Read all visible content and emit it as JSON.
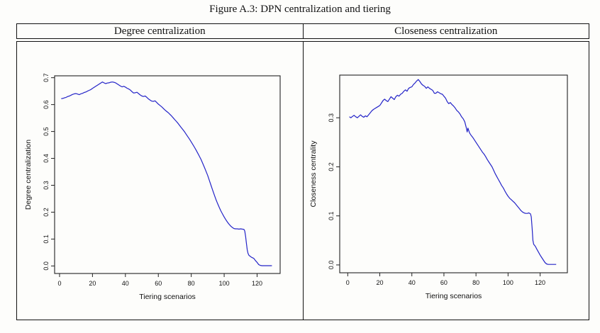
{
  "figure": {
    "title": "Figure A.3: DPN centralization and tiering"
  },
  "panels": {
    "left_header": "Degree centralization",
    "right_header": "Closeness centralization"
  },
  "colors": {
    "line": "#2424c8",
    "axis": "#222222",
    "text": "#111111"
  },
  "chart_data": [
    {
      "type": "line",
      "title": "Degree centralization",
      "xlabel": "Tiering scenarios",
      "ylabel": "Degree centralization",
      "legend": "none",
      "grid": false,
      "xlim": [
        -3,
        134
      ],
      "ylim": [
        -0.028,
        0.707
      ],
      "x_ticks": [
        0,
        20,
        40,
        60,
        80,
        100,
        120
      ],
      "x_tick_labels": [
        "0",
        "20",
        "40",
        "60",
        "80",
        "100",
        "120"
      ],
      "y_ticks": [
        0.0,
        0.1,
        0.2,
        0.3,
        0.4,
        0.5,
        0.6,
        0.7
      ],
      "y_tick_labels": [
        "0.0",
        "0.1",
        "0.2",
        "0.3",
        "0.4",
        "0.5",
        "0.6",
        "0.7"
      ],
      "line_color": "#2424c8",
      "series": [
        {
          "name": "Degree centralization",
          "x": [
            1,
            2,
            3,
            4,
            5,
            6,
            7,
            8,
            9,
            10,
            11,
            12,
            13,
            14,
            15,
            16,
            17,
            18,
            19,
            20,
            21,
            22,
            23,
            24,
            25,
            26,
            27,
            28,
            29,
            30,
            31,
            32,
            33,
            34,
            35,
            36,
            37,
            38,
            39,
            40,
            41,
            42,
            43,
            44,
            45,
            46,
            47,
            48,
            49,
            50,
            51,
            52,
            53,
            54,
            55,
            56,
            57,
            58,
            59,
            60,
            61,
            62,
            63,
            64,
            65,
            66,
            67,
            68,
            69,
            70,
            71,
            72,
            73,
            74,
            75,
            76,
            77,
            78,
            79,
            80,
            81,
            82,
            83,
            84,
            85,
            86,
            87,
            88,
            89,
            90,
            91,
            92,
            93,
            94,
            95,
            96,
            97,
            98,
            99,
            100,
            101,
            102,
            103,
            104,
            105,
            106,
            107,
            108,
            109,
            110,
            111,
            112,
            112.5,
            113,
            113.5,
            114,
            114.5,
            115,
            116,
            117,
            118,
            118.5,
            119,
            120,
            120.5,
            121,
            122,
            123,
            124,
            125,
            126,
            127,
            128,
            129
          ],
          "y": [
            0.622,
            0.623,
            0.625,
            0.627,
            0.63,
            0.632,
            0.635,
            0.638,
            0.64,
            0.641,
            0.639,
            0.637,
            0.64,
            0.642,
            0.645,
            0.647,
            0.65,
            0.653,
            0.656,
            0.66,
            0.664,
            0.668,
            0.672,
            0.676,
            0.68,
            0.684,
            0.681,
            0.678,
            0.68,
            0.681,
            0.683,
            0.684,
            0.683,
            0.681,
            0.677,
            0.673,
            0.669,
            0.666,
            0.668,
            0.665,
            0.661,
            0.658,
            0.654,
            0.648,
            0.643,
            0.644,
            0.646,
            0.641,
            0.636,
            0.632,
            0.63,
            0.632,
            0.627,
            0.621,
            0.617,
            0.613,
            0.612,
            0.614,
            0.608,
            0.602,
            0.597,
            0.592,
            0.586,
            0.58,
            0.575,
            0.57,
            0.564,
            0.558,
            0.551,
            0.544,
            0.537,
            0.53,
            0.522,
            0.514,
            0.506,
            0.498,
            0.489,
            0.48,
            0.471,
            0.461,
            0.451,
            0.441,
            0.43,
            0.419,
            0.407,
            0.395,
            0.381,
            0.367,
            0.352,
            0.336,
            0.318,
            0.3,
            0.282,
            0.264,
            0.247,
            0.232,
            0.218,
            0.205,
            0.193,
            0.182,
            0.172,
            0.163,
            0.155,
            0.148,
            0.143,
            0.139,
            0.138,
            0.138,
            0.137,
            0.138,
            0.137,
            0.136,
            0.13,
            0.11,
            0.085,
            0.06,
            0.047,
            0.04,
            0.035,
            0.031,
            0.028,
            0.024,
            0.02,
            0.013,
            0.009,
            0.005,
            0.002,
            0.001,
            0.001,
            0.001,
            0.001,
            0.001,
            0.001,
            0.001
          ]
        }
      ]
    },
    {
      "type": "line",
      "title": "Closeness centralization",
      "xlabel": "Tiering scenarios",
      "ylabel": "Closeness centrality",
      "legend": "none",
      "grid": false,
      "xlim": [
        -5,
        137
      ],
      "ylim": [
        -0.016,
        0.387
      ],
      "x_ticks": [
        0,
        20,
        40,
        60,
        80,
        100,
        120
      ],
      "x_tick_labels": [
        "0",
        "20",
        "40",
        "60",
        "80",
        "100",
        "120"
      ],
      "y_ticks": [
        0.0,
        0.1,
        0.2,
        0.3
      ],
      "y_tick_labels": [
        "0.0",
        "0.1",
        "0.2",
        "0.3"
      ],
      "line_color": "#2424c8",
      "series": [
        {
          "name": "Closeness centrality",
          "x": [
            1,
            2,
            3,
            4,
            5,
            6,
            7,
            8,
            9,
            10,
            11,
            12,
            13,
            14,
            15,
            16,
            17,
            18,
            19,
            20,
            21,
            22,
            23,
            24,
            25,
            26,
            27,
            28,
            29,
            30,
            31,
            32,
            33,
            34,
            35,
            36,
            37,
            38,
            39,
            40,
            41,
            42,
            43,
            44,
            45,
            46,
            47,
            48,
            49,
            50,
            51,
            52,
            53,
            54,
            55,
            56,
            57,
            58,
            59,
            60,
            61,
            62,
            63,
            64,
            65,
            66,
            67,
            68,
            69,
            70,
            71,
            72,
            73,
            74,
            74.5,
            75,
            76,
            77,
            78,
            79,
            80,
            81,
            82,
            83,
            84,
            85,
            86,
            87,
            88,
            89,
            90,
            91,
            92,
            93,
            94,
            95,
            96,
            97,
            98,
            99,
            100,
            101,
            102,
            103,
            104,
            105,
            106,
            107,
            108,
            109,
            110,
            111,
            112,
            113,
            114,
            114.5,
            115,
            115.5,
            116,
            117,
            118,
            119,
            120,
            121,
            122,
            123,
            124,
            125,
            126,
            127,
            128,
            129,
            130
          ],
          "y": [
            0.302,
            0.3,
            0.303,
            0.305,
            0.302,
            0.3,
            0.303,
            0.306,
            0.303,
            0.301,
            0.304,
            0.302,
            0.306,
            0.31,
            0.314,
            0.317,
            0.319,
            0.321,
            0.323,
            0.325,
            0.33,
            0.335,
            0.338,
            0.335,
            0.333,
            0.338,
            0.343,
            0.34,
            0.337,
            0.343,
            0.346,
            0.344,
            0.348,
            0.35,
            0.354,
            0.357,
            0.354,
            0.36,
            0.362,
            0.363,
            0.368,
            0.371,
            0.375,
            0.378,
            0.374,
            0.369,
            0.366,
            0.364,
            0.36,
            0.363,
            0.36,
            0.358,
            0.356,
            0.35,
            0.35,
            0.353,
            0.351,
            0.349,
            0.348,
            0.344,
            0.34,
            0.333,
            0.329,
            0.331,
            0.327,
            0.324,
            0.32,
            0.315,
            0.312,
            0.308,
            0.302,
            0.298,
            0.292,
            0.279,
            0.271,
            0.279,
            0.269,
            0.264,
            0.26,
            0.255,
            0.25,
            0.245,
            0.24,
            0.235,
            0.23,
            0.226,
            0.221,
            0.215,
            0.21,
            0.205,
            0.2,
            0.193,
            0.186,
            0.18,
            0.174,
            0.168,
            0.162,
            0.157,
            0.151,
            0.145,
            0.14,
            0.136,
            0.133,
            0.13,
            0.127,
            0.123,
            0.119,
            0.115,
            0.111,
            0.108,
            0.106,
            0.105,
            0.105,
            0.106,
            0.104,
            0.098,
            0.075,
            0.05,
            0.042,
            0.038,
            0.032,
            0.026,
            0.02,
            0.015,
            0.01,
            0.005,
            0.002,
            0.001,
            0.001,
            0.001,
            0.001,
            0.001,
            0.001
          ]
        }
      ]
    }
  ]
}
